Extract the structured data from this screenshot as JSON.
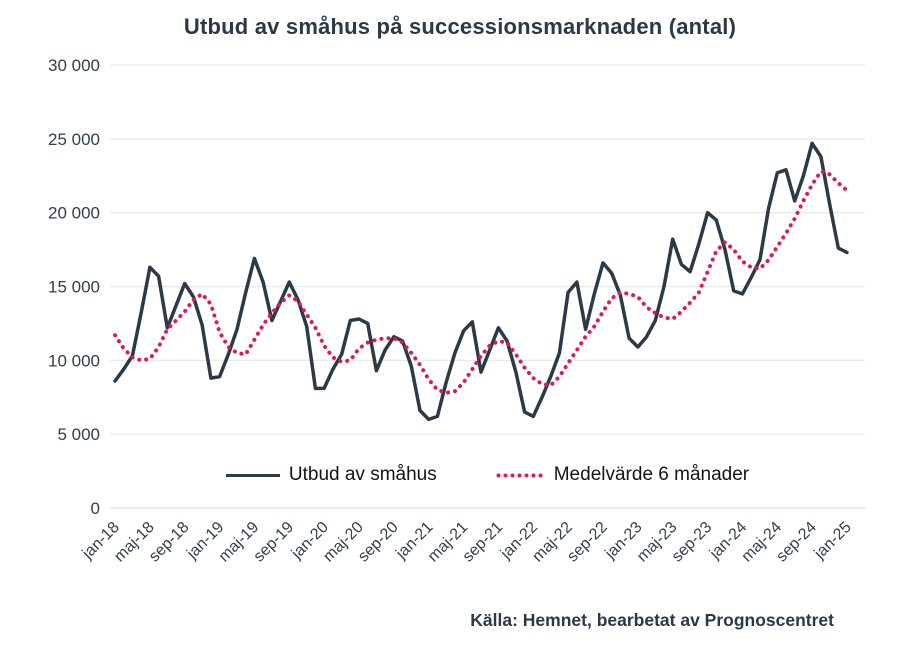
{
  "title": "Utbud av småhus på successionsmarknaden (antal)",
  "source": "Källa: Hemnet, bearbetat av Prognoscentret",
  "colors": {
    "text": "#2b3947",
    "axis_text": "#313e4c",
    "grid": "#e8eaeb",
    "zero_line": "#d9dcde",
    "supply_line": "#2c3947",
    "average_line": "#d91a5c",
    "legend_text": "#111418"
  },
  "legend": {
    "supply_label": "Utbud av småhus",
    "average_label": "Medelvärde 6 månader"
  },
  "y_axis": {
    "tick_values": [
      30000,
      25000,
      20000,
      15000,
      10000,
      5000,
      0
    ],
    "tick_labels": [
      "30 000",
      "25 000",
      "20 000",
      "15 000",
      "10 000",
      "5 000",
      "0"
    ]
  },
  "x_axis": {
    "tick_every": 4,
    "tick_labels": [
      "jan-18",
      "maj-18",
      "sep-18",
      "jan-19",
      "maj-19",
      "sep-19",
      "jan-20",
      "maj-20",
      "sep-20",
      "jan-21",
      "maj-21",
      "sep-21",
      "jan-22",
      "maj-22",
      "sep-22",
      "jan-23",
      "maj-23",
      "sep-23",
      "jan-24",
      "maj-24",
      "sep-24",
      "jan-25"
    ]
  },
  "chart_data": {
    "type": "line",
    "title": "Utbud av småhus på successionsmarknaden (antal)",
    "xlabel": "",
    "ylabel": "",
    "ylim": [
      0,
      30000
    ],
    "grid": true,
    "legend_position": "bottom-center-inside",
    "x": [
      "jan-18",
      "feb-18",
      "mar-18",
      "apr-18",
      "maj-18",
      "jun-18",
      "jul-18",
      "aug-18",
      "sep-18",
      "okt-18",
      "nov-18",
      "dec-18",
      "jan-19",
      "feb-19",
      "mar-19",
      "apr-19",
      "maj-19",
      "jun-19",
      "jul-19",
      "aug-19",
      "sep-19",
      "okt-19",
      "nov-19",
      "dec-19",
      "jan-20",
      "feb-20",
      "mar-20",
      "apr-20",
      "maj-20",
      "jun-20",
      "jul-20",
      "aug-20",
      "sep-20",
      "okt-20",
      "nov-20",
      "dec-20",
      "jan-21",
      "feb-21",
      "mar-21",
      "apr-21",
      "maj-21",
      "jun-21",
      "jul-21",
      "aug-21",
      "sep-21",
      "okt-21",
      "nov-21",
      "dec-21",
      "jan-22",
      "feb-22",
      "mar-22",
      "apr-22",
      "maj-22",
      "jun-22",
      "jul-22",
      "aug-22",
      "sep-22",
      "okt-22",
      "nov-22",
      "dec-22",
      "jan-23",
      "feb-23",
      "mar-23",
      "apr-23",
      "maj-23",
      "jun-23",
      "jul-23",
      "aug-23",
      "sep-23",
      "okt-23",
      "nov-23",
      "dec-23",
      "jan-24",
      "feb-24",
      "mar-24",
      "apr-24",
      "maj-24",
      "jun-24",
      "jul-24",
      "aug-24",
      "sep-24",
      "okt-24",
      "nov-24",
      "dec-24",
      "jan-25"
    ],
    "series": [
      {
        "name": "Utbud av småhus",
        "style": "solid",
        "color": "#2c3947",
        "values": [
          8600,
          9400,
          10300,
          13200,
          16300,
          15700,
          12200,
          13700,
          15200,
          14300,
          12400,
          8800,
          8900,
          10400,
          12100,
          14600,
          16900,
          15300,
          12700,
          14000,
          15300,
          14100,
          12300,
          8100,
          8100,
          9400,
          10400,
          12700,
          12800,
          12500,
          9300,
          10700,
          11600,
          11300,
          9600,
          6600,
          6000,
          6200,
          8500,
          10500,
          12000,
          12600,
          9200,
          10700,
          12200,
          11300,
          9200,
          6500,
          6200,
          7500,
          8900,
          10500,
          14600,
          15300,
          12100,
          14500,
          16600,
          15900,
          14400,
          11500,
          10900,
          11600,
          12700,
          15000,
          18200,
          16500,
          16000,
          17900,
          20000,
          19500,
          17500,
          14700,
          14500,
          15600,
          16800,
          20300,
          22700,
          22900,
          20800,
          22500,
          24700,
          23800,
          20600,
          17600,
          17300
        ]
      },
      {
        "name": "Medelvärde 6 månader",
        "style": "dotted",
        "color": "#d91a5c",
        "values": [
          11700,
          10800,
          10200,
          10000,
          10100,
          10900,
          12100,
          12700,
          13300,
          14100,
          14500,
          13800,
          11900,
          10900,
          10500,
          10400,
          11400,
          12400,
          13200,
          13900,
          14400,
          14000,
          13100,
          12200,
          11000,
          10200,
          9900,
          10000,
          10800,
          11200,
          11400,
          11500,
          11500,
          11200,
          10500,
          9700,
          8700,
          8000,
          7800,
          7900,
          8500,
          9400,
          10300,
          11000,
          11300,
          11200,
          10400,
          9500,
          8800,
          8400,
          8300,
          8900,
          9800,
          10700,
          11600,
          12300,
          13300,
          14200,
          14600,
          14500,
          14300,
          13600,
          13200,
          12900,
          12800,
          13300,
          13900,
          14600,
          16000,
          17400,
          18000,
          17500,
          16700,
          16300,
          16200,
          16800,
          17700,
          18600,
          19600,
          20800,
          21900,
          22800,
          22600,
          22000,
          21500
        ]
      }
    ]
  }
}
